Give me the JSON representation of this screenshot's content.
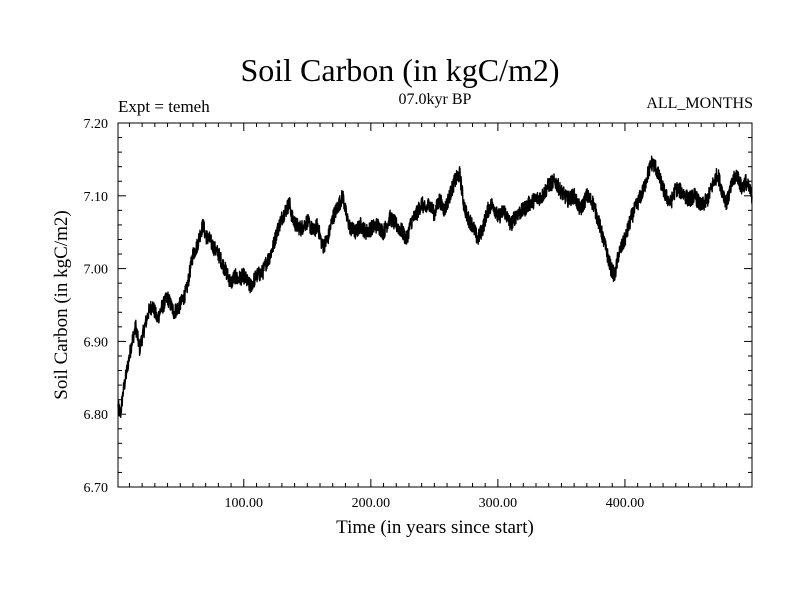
{
  "header": {
    "title": "Soil Carbon (in kgC/m2)",
    "subtitle": "07.0kyr BP",
    "experiment": "Expt = temeh",
    "months": "ALL_MONTHS"
  },
  "chart_data": {
    "type": "line",
    "title": "Soil Carbon (in kgC/m2)",
    "subtitle": "07.0kyr BP",
    "xlabel": "Time (in years since start)",
    "ylabel": "Soil Carbon (in kgC/m2)",
    "xlim": [
      1,
      500
    ],
    "ylim": [
      6.7,
      7.2
    ],
    "x_ticks": [
      100,
      200,
      300,
      400
    ],
    "x_tick_labels": [
      "100.00",
      "200.00",
      "300.00",
      "400.00"
    ],
    "y_ticks": [
      6.7,
      6.8,
      6.9,
      7.0,
      7.1,
      7.2
    ],
    "y_tick_labels": [
      "6.70",
      "6.80",
      "6.90",
      "7.00",
      "7.10",
      "7.20"
    ],
    "grid": false,
    "series": [
      {
        "name": "Soil Carbon",
        "color": "#000000",
        "x": [
          1,
          3,
          5,
          8,
          12,
          15,
          18,
          22,
          25,
          28,
          32,
          35,
          40,
          45,
          50,
          55,
          58,
          60,
          63,
          66,
          68,
          70,
          73,
          76,
          80,
          85,
          90,
          93,
          95,
          100,
          105,
          110,
          115,
          118,
          120,
          123,
          126,
          130,
          133,
          136,
          138,
          141,
          145,
          150,
          155,
          158,
          162,
          166,
          170,
          174,
          178,
          181,
          184,
          188,
          192,
          196,
          200,
          205,
          210,
          215,
          220,
          225,
          228,
          232,
          236,
          240,
          243,
          246,
          250,
          254,
          258,
          262,
          266,
          270,
          273,
          276,
          280,
          284,
          288,
          292,
          296,
          300,
          305,
          310,
          315,
          320,
          325,
          330,
          335,
          340,
          345,
          350,
          355,
          360,
          365,
          370,
          375,
          380,
          383,
          386,
          389,
          392,
          395,
          400,
          405,
          410,
          415,
          418,
          421,
          424,
          428,
          432,
          436,
          440,
          445,
          450,
          455,
          460,
          465,
          470,
          473,
          476,
          480,
          485,
          488,
          492,
          495,
          500
        ],
        "values": [
          6.81,
          6.8,
          6.83,
          6.86,
          6.9,
          6.92,
          6.89,
          6.92,
          6.94,
          6.95,
          6.93,
          6.945,
          6.96,
          6.94,
          6.95,
          6.97,
          7.0,
          7.02,
          7.03,
          7.05,
          7.06,
          7.045,
          7.04,
          7.03,
          7.02,
          7.0,
          6.98,
          6.99,
          6.985,
          6.99,
          6.975,
          6.99,
          6.995,
          7.01,
          7.015,
          7.03,
          7.05,
          7.07,
          7.08,
          7.09,
          7.07,
          7.06,
          7.055,
          7.065,
          7.05,
          7.06,
          7.03,
          7.04,
          7.07,
          7.085,
          7.1,
          7.07,
          7.055,
          7.05,
          7.06,
          7.05,
          7.055,
          7.06,
          7.05,
          7.07,
          7.06,
          7.05,
          7.04,
          7.065,
          7.075,
          7.09,
          7.08,
          7.09,
          7.075,
          7.095,
          7.08,
          7.1,
          7.12,
          7.13,
          7.09,
          7.07,
          7.06,
          7.04,
          7.055,
          7.08,
          7.09,
          7.07,
          7.08,
          7.06,
          7.075,
          7.08,
          7.09,
          7.095,
          7.1,
          7.115,
          7.12,
          7.105,
          7.095,
          7.1,
          7.08,
          7.1,
          7.09,
          7.06,
          7.04,
          7.02,
          7.0,
          6.99,
          7.02,
          7.04,
          7.07,
          7.09,
          7.11,
          7.13,
          7.145,
          7.14,
          7.12,
          7.1,
          7.09,
          7.11,
          7.105,
          7.095,
          7.1,
          7.085,
          7.095,
          7.12,
          7.13,
          7.11,
          7.09,
          7.12,
          7.13,
          7.11,
          7.12,
          7.1
        ]
      }
    ]
  }
}
